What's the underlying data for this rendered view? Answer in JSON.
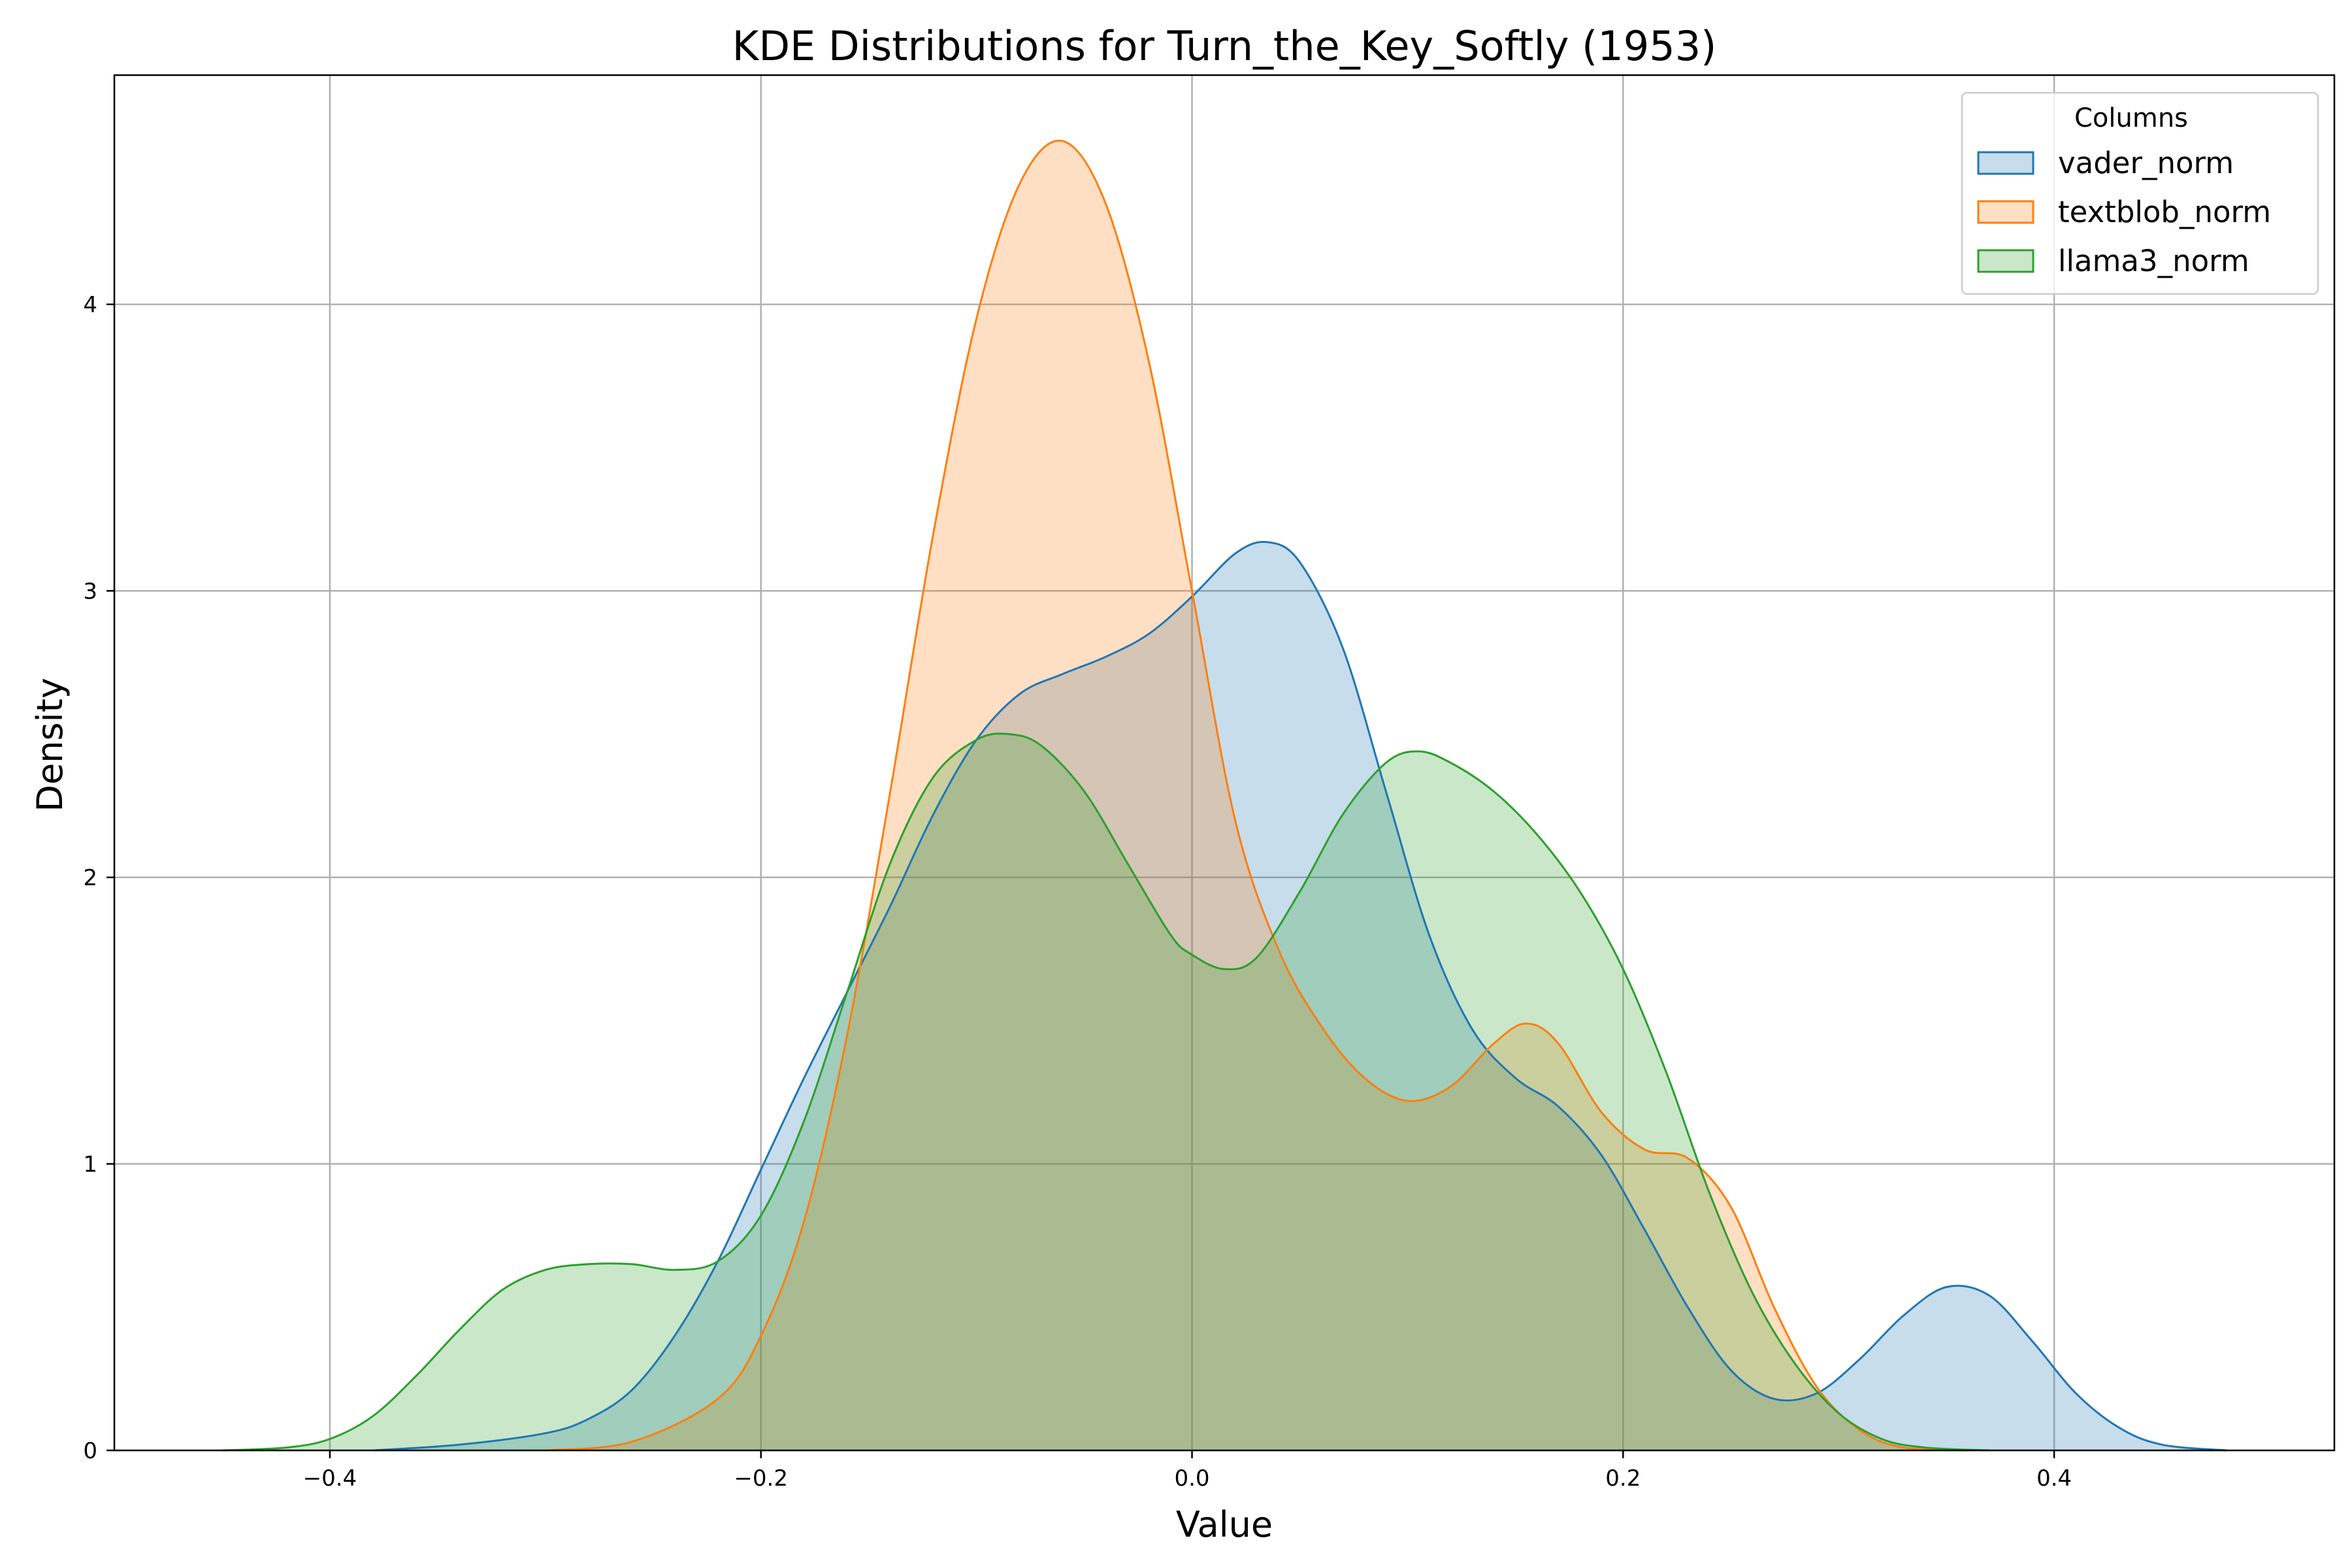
{
  "chart_data": {
    "type": "area",
    "title": "KDE Distributions for Turn_the_Key_Softly (1953)",
    "xlabel": "Value",
    "ylabel": "Density",
    "xlim": [
      -0.5,
      0.53
    ],
    "ylim": [
      0,
      4.8
    ],
    "xticks": [
      -0.4,
      -0.2,
      0.0,
      0.2,
      0.4
    ],
    "xtick_labels": [
      "−0.4",
      "−0.2",
      "0.0",
      "0.2",
      "0.4"
    ],
    "yticks": [
      0,
      1,
      2,
      3,
      4
    ],
    "ytick_labels": [
      "0",
      "1",
      "2",
      "3",
      "4"
    ],
    "grid": true,
    "legend": {
      "title": "Columns",
      "position": "top-right"
    },
    "series": [
      {
        "name": "vader_norm",
        "color": "#1f77b4",
        "points": [
          [
            -0.38,
            0.0
          ],
          [
            -0.34,
            0.02
          ],
          [
            -0.3,
            0.06
          ],
          [
            -0.28,
            0.11
          ],
          [
            -0.26,
            0.21
          ],
          [
            -0.24,
            0.4
          ],
          [
            -0.22,
            0.66
          ],
          [
            -0.2,
            0.98
          ],
          [
            -0.18,
            1.3
          ],
          [
            -0.16,
            1.6
          ],
          [
            -0.14,
            1.9
          ],
          [
            -0.12,
            2.22
          ],
          [
            -0.1,
            2.48
          ],
          [
            -0.08,
            2.64
          ],
          [
            -0.06,
            2.71
          ],
          [
            -0.04,
            2.77
          ],
          [
            -0.02,
            2.85
          ],
          [
            0.0,
            2.98
          ],
          [
            0.02,
            3.13
          ],
          [
            0.035,
            3.17
          ],
          [
            0.05,
            3.1
          ],
          [
            0.07,
            2.8
          ],
          [
            0.09,
            2.3
          ],
          [
            0.11,
            1.8
          ],
          [
            0.13,
            1.47
          ],
          [
            0.15,
            1.3
          ],
          [
            0.17,
            1.2
          ],
          [
            0.19,
            1.03
          ],
          [
            0.21,
            0.77
          ],
          [
            0.23,
            0.5
          ],
          [
            0.25,
            0.28
          ],
          [
            0.27,
            0.18
          ],
          [
            0.29,
            0.2
          ],
          [
            0.31,
            0.32
          ],
          [
            0.33,
            0.47
          ],
          [
            0.35,
            0.57
          ],
          [
            0.37,
            0.54
          ],
          [
            0.39,
            0.38
          ],
          [
            0.41,
            0.2
          ],
          [
            0.43,
            0.08
          ],
          [
            0.45,
            0.02
          ],
          [
            0.48,
            0.0
          ]
        ]
      },
      {
        "name": "textblob_norm",
        "color": "#ff7f0e",
        "points": [
          [
            -0.3,
            0.0
          ],
          [
            -0.26,
            0.03
          ],
          [
            -0.22,
            0.18
          ],
          [
            -0.2,
            0.4
          ],
          [
            -0.18,
            0.8
          ],
          [
            -0.16,
            1.45
          ],
          [
            -0.14,
            2.3
          ],
          [
            -0.12,
            3.2
          ],
          [
            -0.1,
            3.95
          ],
          [
            -0.08,
            4.42
          ],
          [
            -0.06,
            4.57
          ],
          [
            -0.04,
            4.35
          ],
          [
            -0.02,
            3.8
          ],
          [
            0.0,
            3.0
          ],
          [
            0.02,
            2.2
          ],
          [
            0.04,
            1.75
          ],
          [
            0.06,
            1.48
          ],
          [
            0.08,
            1.3
          ],
          [
            0.1,
            1.22
          ],
          [
            0.12,
            1.27
          ],
          [
            0.14,
            1.42
          ],
          [
            0.155,
            1.49
          ],
          [
            0.17,
            1.42
          ],
          [
            0.19,
            1.18
          ],
          [
            0.21,
            1.05
          ],
          [
            0.23,
            1.02
          ],
          [
            0.25,
            0.85
          ],
          [
            0.27,
            0.5
          ],
          [
            0.29,
            0.22
          ],
          [
            0.31,
            0.07
          ],
          [
            0.33,
            0.01
          ],
          [
            0.36,
            0.0
          ]
        ]
      },
      {
        "name": "llama3_norm",
        "color": "#2ca02c",
        "points": [
          [
            -0.45,
            0.0
          ],
          [
            -0.42,
            0.01
          ],
          [
            -0.4,
            0.04
          ],
          [
            -0.38,
            0.12
          ],
          [
            -0.36,
            0.26
          ],
          [
            -0.34,
            0.42
          ],
          [
            -0.32,
            0.56
          ],
          [
            -0.3,
            0.63
          ],
          [
            -0.28,
            0.65
          ],
          [
            -0.26,
            0.65
          ],
          [
            -0.24,
            0.63
          ],
          [
            -0.22,
            0.66
          ],
          [
            -0.2,
            0.82
          ],
          [
            -0.18,
            1.15
          ],
          [
            -0.16,
            1.6
          ],
          [
            -0.14,
            2.05
          ],
          [
            -0.12,
            2.35
          ],
          [
            -0.1,
            2.48
          ],
          [
            -0.085,
            2.5
          ],
          [
            -0.07,
            2.46
          ],
          [
            -0.05,
            2.3
          ],
          [
            -0.03,
            2.05
          ],
          [
            -0.01,
            1.8
          ],
          [
            0.0,
            1.73
          ],
          [
            0.015,
            1.68
          ],
          [
            0.03,
            1.72
          ],
          [
            0.05,
            1.95
          ],
          [
            0.07,
            2.22
          ],
          [
            0.09,
            2.4
          ],
          [
            0.105,
            2.44
          ],
          [
            0.12,
            2.4
          ],
          [
            0.14,
            2.3
          ],
          [
            0.16,
            2.15
          ],
          [
            0.18,
            1.95
          ],
          [
            0.2,
            1.68
          ],
          [
            0.22,
            1.32
          ],
          [
            0.24,
            0.9
          ],
          [
            0.26,
            0.55
          ],
          [
            0.28,
            0.3
          ],
          [
            0.3,
            0.13
          ],
          [
            0.32,
            0.04
          ],
          [
            0.34,
            0.01
          ],
          [
            0.37,
            0.0
          ]
        ]
      }
    ]
  }
}
